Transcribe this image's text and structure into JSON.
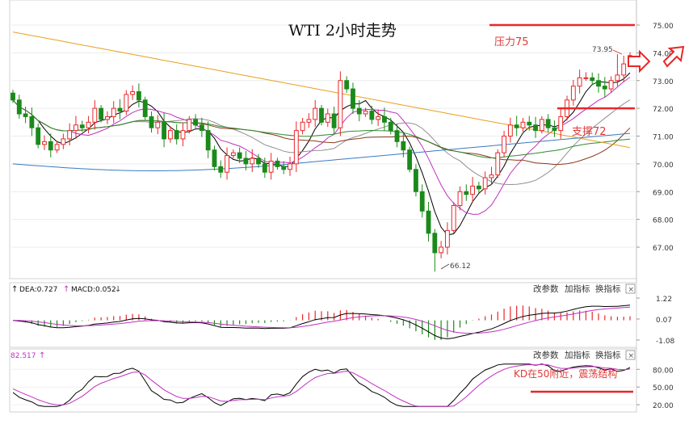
{
  "chart_data": [
    {
      "type": "candlestick",
      "title": "WTI 2小时走势",
      "ylim": [
        66.0,
        75.3
      ],
      "yticks": [
        "75.00",
        "74.00",
        "73.00",
        "72.00",
        "71.00",
        "70.00",
        "69.00",
        "68.00",
        "67.00"
      ],
      "annotations": {
        "high_label": "73.95",
        "low_label": "66.12",
        "resistance_label": "压力75",
        "support_label": "支撑72"
      },
      "levels": {
        "resistance": 75.0,
        "support": 72.0
      },
      "colors": {
        "up": "#e8272a",
        "down": "#1a8a1a",
        "ma_black": "#000000",
        "ma_magenta": "#c030c0",
        "ma_gray": "#909090",
        "ma_brown": "#8b3a1a",
        "ma_green": "#2e8b2e",
        "ma_orange": "#e8a020",
        "ma_blue": "#3a7ac0"
      },
      "closes": [
        72.3,
        71.8,
        71.7,
        71.3,
        70.7,
        70.8,
        70.5,
        70.7,
        70.9,
        71.2,
        71.4,
        71.3,
        71.5,
        72.0,
        71.6,
        71.7,
        72.0,
        71.9,
        72.5,
        72.6,
        72.3,
        71.7,
        71.3,
        71.5,
        70.9,
        71.2,
        70.9,
        71.2,
        71.6,
        71.4,
        71.2,
        70.5,
        69.9,
        69.7,
        70.3,
        70.4,
        70.2,
        70.0,
        70.2,
        70.0,
        69.7,
        70.1,
        69.9,
        69.8,
        70.0,
        71.2,
        71.5,
        71.6,
        72.0,
        71.5,
        71.8,
        71.3,
        73.0,
        72.7,
        72.0,
        71.8,
        71.9,
        71.6,
        71.7,
        71.5,
        71.2,
        70.8,
        70.5,
        69.8,
        69.0,
        68.3,
        67.5,
        66.8,
        67.0,
        67.6,
        68.5,
        69.0,
        68.9,
        69.2,
        69.1,
        69.5,
        69.6,
        70.4,
        71.0,
        71.4,
        71.3,
        71.5,
        71.4,
        71.2,
        71.6,
        71.3,
        71.2,
        71.7,
        72.3,
        72.8,
        73.1,
        73.1,
        73.0,
        72.8,
        72.7,
        73.0,
        73.2,
        73.6,
        73.9
      ],
      "macd_labels": {
        "dea": "DEA:0.727",
        "macd": "MACD:0.052"
      },
      "macd_yticks": [
        "1.22",
        "0.07",
        "-1.08"
      ],
      "kd_label": "82.517",
      "kd_yticks": [
        "80.00",
        "50.00",
        "20.00"
      ],
      "kd_annotation": "KD在50附近，震荡结构",
      "panel_buttons": [
        "改参数",
        "加指标",
        "换指标"
      ]
    }
  ]
}
